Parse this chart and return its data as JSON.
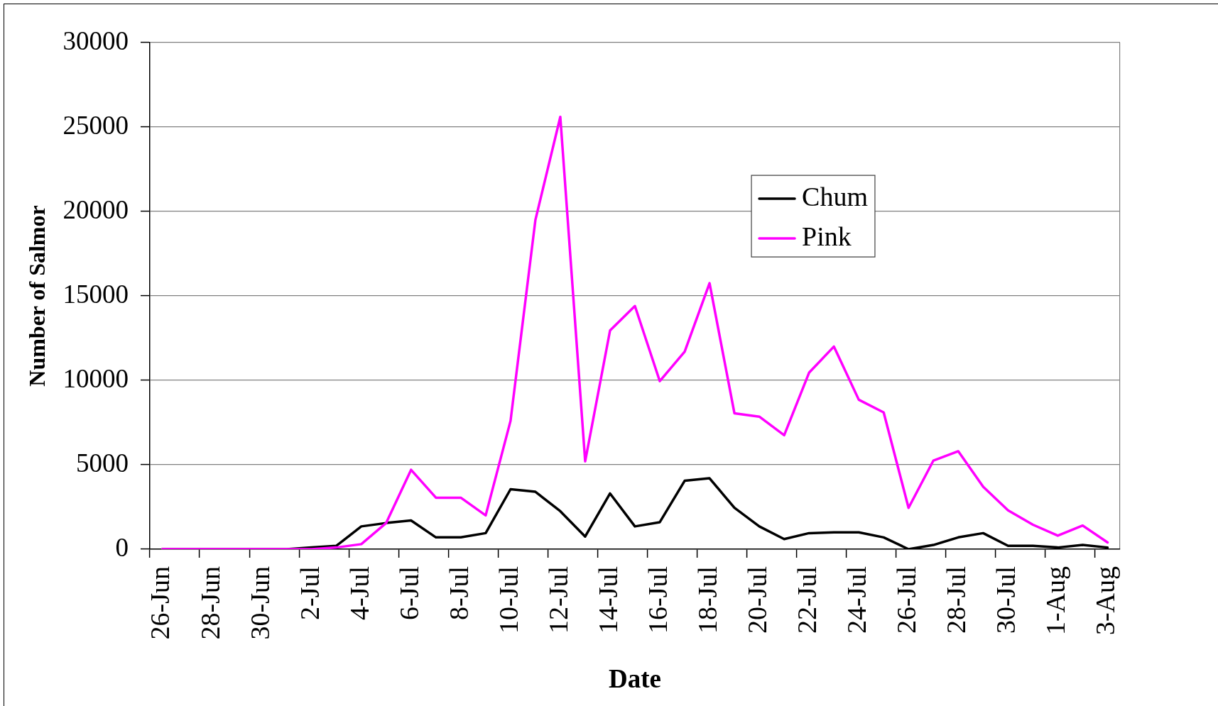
{
  "chart_data": {
    "type": "line",
    "xlabel": "Date",
    "ylabel": "Number of Salmor",
    "categories": [
      "26-Jun",
      null,
      "28-Jun",
      null,
      "30-Jun",
      null,
      "2-Jul",
      null,
      "4-Jul",
      null,
      "6-Jul",
      null,
      "8-Jul",
      null,
      "10-Jul",
      null,
      "12-Jul",
      null,
      "14-Jul",
      null,
      "16-Jul",
      null,
      "18-Jul",
      null,
      "20-Jul",
      null,
      "22-Jul",
      null,
      "24-Jul",
      null,
      "26-Jul",
      null,
      "28-Jul",
      null,
      "30-Jul",
      null,
      "1-Aug",
      null,
      "3-Aug"
    ],
    "series": [
      {
        "name": "Chum",
        "color": "#000000",
        "values": [
          0,
          0,
          0,
          0,
          0,
          0,
          100,
          200,
          1350,
          1550,
          1700,
          700,
          700,
          950,
          3550,
          3400,
          2250,
          750,
          3300,
          1350,
          1600,
          4050,
          4200,
          2450,
          1350,
          600,
          950,
          1000,
          1000,
          700,
          0,
          250,
          700,
          950,
          200,
          200,
          100,
          250,
          100
        ]
      },
      {
        "name": "Pink",
        "color": "#ff00ff",
        "values": [
          0,
          0,
          0,
          0,
          0,
          0,
          0,
          100,
          300,
          1550,
          4700,
          3050,
          3050,
          2000,
          7600,
          19500,
          25600,
          5200,
          12950,
          14400,
          9950,
          11700,
          15750,
          8050,
          7850,
          6750,
          10450,
          12000,
          8850,
          8100,
          2450,
          5250,
          5800,
          3700,
          2300,
          1450,
          800,
          1400,
          400
        ]
      }
    ],
    "ylim": [
      0,
      30000
    ],
    "yticks": [
      0,
      5000,
      10000,
      15000,
      20000,
      25000,
      30000
    ],
    "grid": "y",
    "legend": "top right"
  }
}
